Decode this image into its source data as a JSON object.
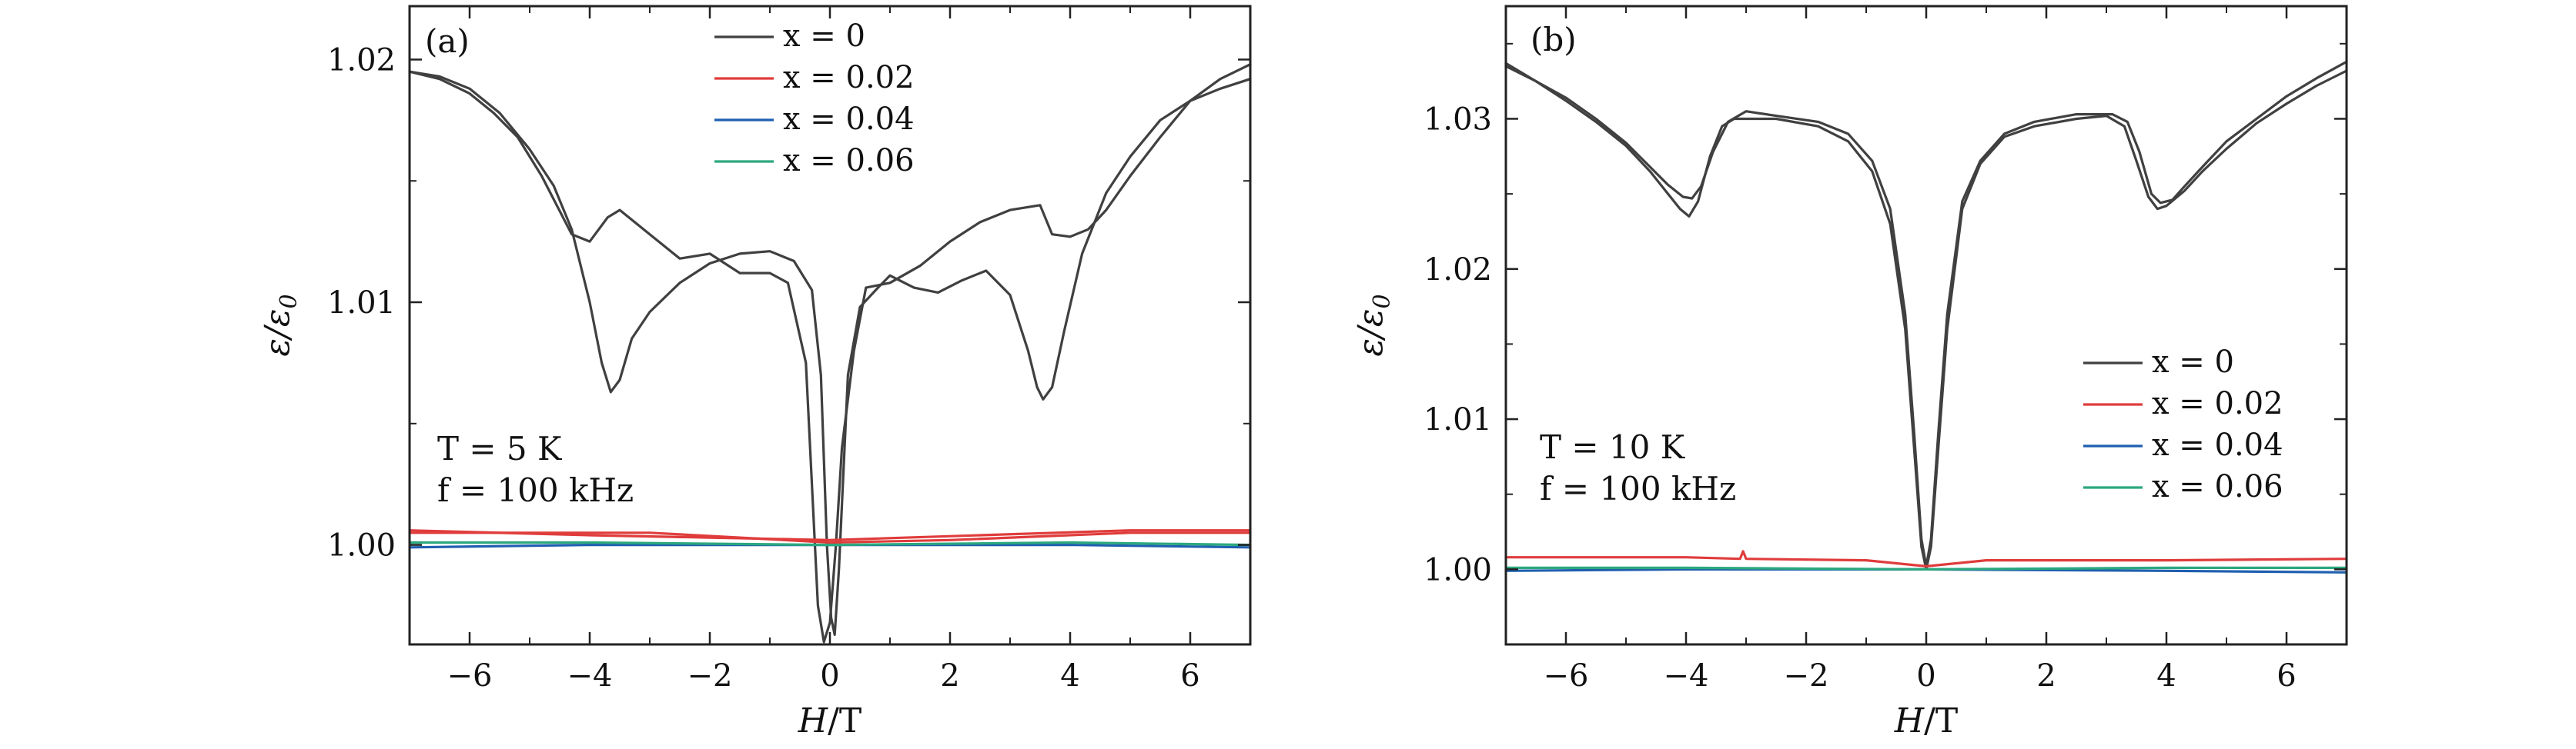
{
  "chart_data": [
    {
      "type": "line",
      "panel_label": "(a)",
      "xlabel": {
        "var": "H",
        "unit": "/T"
      },
      "ylabel": {
        "var": "ε/ε",
        "sub": "0"
      },
      "xlim": [
        -7,
        7
      ],
      "ylim": [
        0.9959,
        1.0222
      ],
      "xticks": [
        -6,
        -4,
        -2,
        0,
        2,
        4,
        6
      ],
      "yticks": [
        1.0,
        1.01,
        1.02
      ],
      "ytick_labels": [
        "1.00",
        "1.01",
        "1.02"
      ],
      "legend_position": "top-center",
      "annotation": [
        "T = 5 K",
        "f = 100 kHz"
      ],
      "series": [
        {
          "name": "x = 0",
          "color": "#404040",
          "branches": [
            [
              [
                -7,
                1.0195
              ],
              [
                -6.5,
                1.0193
              ],
              [
                -6,
                1.0188
              ],
              [
                -5.5,
                1.0178
              ],
              [
                -5,
                1.0163
              ],
              [
                -4.6,
                1.0148
              ],
              [
                -4.3,
                1.013
              ],
              [
                -4.0,
                1.01
              ],
              [
                -3.8,
                1.0075
              ],
              [
                -3.65,
                1.0063
              ],
              [
                -3.5,
                1.0068
              ],
              [
                -3.3,
                1.0085
              ],
              [
                -3.0,
                1.0096
              ],
              [
                -2.5,
                1.0108
              ],
              [
                -2.0,
                1.0116
              ],
              [
                -1.5,
                1.012
              ],
              [
                -1.0,
                1.0121
              ],
              [
                -0.6,
                1.0117
              ],
              [
                -0.3,
                1.0105
              ],
              [
                -0.15,
                1.007
              ],
              [
                -0.05,
                1.0
              ],
              [
                0.02,
                0.997
              ],
              [
                0.08,
                0.9963
              ],
              [
                0.15,
                0.999
              ],
              [
                0.3,
                1.007
              ],
              [
                0.5,
                1.0098
              ],
              [
                0.8,
                1.0106
              ],
              [
                1.0,
                1.0111
              ],
              [
                1.4,
                1.0106
              ],
              [
                1.8,
                1.0104
              ],
              [
                2.2,
                1.0109
              ],
              [
                2.6,
                1.0113
              ],
              [
                3.0,
                1.0103
              ],
              [
                3.3,
                1.008
              ],
              [
                3.45,
                1.0065
              ],
              [
                3.55,
                1.006
              ],
              [
                3.7,
                1.0065
              ],
              [
                3.9,
                1.0088
              ],
              [
                4.2,
                1.012
              ],
              [
                4.6,
                1.0145
              ],
              [
                5.0,
                1.016
              ],
              [
                5.5,
                1.0175
              ],
              [
                6.0,
                1.0183
              ],
              [
                6.5,
                1.0188
              ],
              [
                7.0,
                1.0192
              ]
            ],
            [
              [
                7,
                1.0198
              ],
              [
                6.5,
                1.0192
              ],
              [
                6,
                1.0183
              ],
              [
                5.5,
                1.0168
              ],
              [
                5.0,
                1.0152
              ],
              [
                4.6,
                1.0138
              ],
              [
                4.3,
                1.013
              ],
              [
                4.0,
                1.0127
              ],
              [
                3.7,
                1.0128
              ],
              [
                3.5,
                1.014
              ],
              [
                3.0,
                1.0138
              ],
              [
                2.5,
                1.0133
              ],
              [
                2.0,
                1.0125
              ],
              [
                1.5,
                1.0115
              ],
              [
                1.0,
                1.0108
              ],
              [
                0.6,
                1.0106
              ],
              [
                0.4,
                1.008
              ],
              [
                0.2,
                1.004
              ],
              [
                0.1,
                1.0
              ],
              [
                0.0,
                0.9968
              ],
              [
                -0.1,
                0.996
              ],
              [
                -0.2,
                0.9975
              ],
              [
                -0.4,
                1.0075
              ],
              [
                -0.7,
                1.0108
              ],
              [
                -1.0,
                1.0112
              ],
              [
                -1.5,
                1.0112
              ],
              [
                -2.0,
                1.012
              ],
              [
                -2.5,
                1.0118
              ],
              [
                -3.0,
                1.0128
              ],
              [
                -3.5,
                1.0138
              ],
              [
                -3.7,
                1.0135
              ],
              [
                -4.0,
                1.0125
              ],
              [
                -4.3,
                1.0128
              ],
              [
                -4.8,
                1.0152
              ],
              [
                -5.2,
                1.0168
              ],
              [
                -5.6,
                1.0178
              ],
              [
                -6.0,
                1.0186
              ],
              [
                -6.5,
                1.0192
              ],
              [
                -7,
                1.0195
              ]
            ]
          ]
        },
        {
          "name": "x = 0.02",
          "color": "#e03c3c",
          "branches": [
            [
              [
                -7,
                1.0005
              ],
              [
                -3,
                1.0005
              ],
              [
                -1.5,
                1.0003
              ],
              [
                0,
                1.0001
              ],
              [
                2,
                1.0002
              ],
              [
                5,
                1.0005
              ],
              [
                7,
                1.0005
              ]
            ],
            [
              [
                -7,
                1.0006
              ],
              [
                -4,
                1.0004
              ],
              [
                -2,
                1.0003
              ],
              [
                0,
                1.0002
              ],
              [
                2.5,
                1.0004
              ],
              [
                5,
                1.0006
              ],
              [
                7,
                1.0006
              ]
            ]
          ]
        },
        {
          "name": "x = 0.04",
          "color": "#1f5fb0",
          "branches": [
            [
              [
                -7,
                0.9999
              ],
              [
                -4,
                1.0
              ],
              [
                0,
                1.0
              ],
              [
                4,
                1.0
              ],
              [
                7,
                0.9999
              ]
            ]
          ]
        },
        {
          "name": "x = 0.06",
          "color": "#2ca87e",
          "branches": [
            [
              [
                -7,
                1.0001
              ],
              [
                -4,
                1.0001
              ],
              [
                0,
                1.0
              ],
              [
                4,
                1.0001
              ],
              [
                7,
                1.0
              ]
            ]
          ]
        }
      ]
    },
    {
      "type": "line",
      "panel_label": "(b)",
      "xlabel": {
        "var": "H",
        "unit": "/T"
      },
      "ylabel": {
        "var": "ε/ε",
        "sub": "0"
      },
      "xlim": [
        -7,
        7
      ],
      "ylim": [
        0.995,
        1.0375
      ],
      "xticks": [
        -6,
        -4,
        -2,
        0,
        2,
        4,
        6
      ],
      "yticks": [
        1.0,
        1.01,
        1.02,
        1.03
      ],
      "ytick_labels": [
        "1.00",
        "1.01",
        "1.02",
        "1.03"
      ],
      "legend_position": "bottom-right",
      "annotation": [
        "T = 10 K",
        "f = 100 kHz"
      ],
      "series": [
        {
          "name": "x = 0",
          "color": "#404040",
          "branches": [
            [
              [
                -7,
                1.0335
              ],
              [
                -6.5,
                1.0325
              ],
              [
                -6,
                1.0312
              ],
              [
                -5.5,
                1.0298
              ],
              [
                -5,
                1.0282
              ],
              [
                -4.6,
                1.0265
              ],
              [
                -4.3,
                1.025
              ],
              [
                -4.1,
                1.024
              ],
              [
                -3.95,
                1.0235
              ],
              [
                -3.8,
                1.0245
              ],
              [
                -3.6,
                1.0275
              ],
              [
                -3.4,
                1.0295
              ],
              [
                -3.2,
                1.03
              ],
              [
                -2.5,
                1.03
              ],
              [
                -1.8,
                1.0295
              ],
              [
                -1.3,
                1.0285
              ],
              [
                -0.9,
                1.0265
              ],
              [
                -0.6,
                1.023
              ],
              [
                -0.35,
                1.016
              ],
              [
                -0.2,
                1.008
              ],
              [
                -0.08,
                1.0015
              ],
              [
                0.0,
                1.0
              ],
              [
                0.08,
                1.0015
              ],
              [
                0.2,
                1.008
              ],
              [
                0.35,
                1.016
              ],
              [
                0.6,
                1.024
              ],
              [
                0.9,
                1.027
              ],
              [
                1.3,
                1.0288
              ],
              [
                1.8,
                1.0295
              ],
              [
                2.5,
                1.03
              ],
              [
                3.0,
                1.0302
              ],
              [
                3.3,
                1.0295
              ],
              [
                3.5,
                1.0272
              ],
              [
                3.7,
                1.0248
              ],
              [
                3.85,
                1.024
              ],
              [
                4.0,
                1.0242
              ],
              [
                4.3,
                1.0252
              ],
              [
                4.6,
                1.0265
              ],
              [
                5.0,
                1.028
              ],
              [
                5.5,
                1.0297
              ],
              [
                6.0,
                1.031
              ],
              [
                6.5,
                1.0322
              ],
              [
                7,
                1.0332
              ]
            ],
            [
              [
                7,
                1.0338
              ],
              [
                6.5,
                1.0327
              ],
              [
                6,
                1.0315
              ],
              [
                5.5,
                1.03
              ],
              [
                5,
                1.0285
              ],
              [
                4.6,
                1.0268
              ],
              [
                4.3,
                1.0255
              ],
              [
                4.1,
                1.0246
              ],
              [
                3.9,
                1.0244
              ],
              [
                3.75,
                1.025
              ],
              [
                3.55,
                1.0278
              ],
              [
                3.35,
                1.0298
              ],
              [
                3.1,
                1.0303
              ],
              [
                2.5,
                1.0303
              ],
              [
                1.8,
                1.0298
              ],
              [
                1.3,
                1.029
              ],
              [
                0.9,
                1.0272
              ],
              [
                0.6,
                1.0245
              ],
              [
                0.35,
                1.017
              ],
              [
                0.2,
                1.009
              ],
              [
                0.08,
                1.002
              ],
              [
                0.0,
                1.0002
              ],
              [
                -0.08,
                1.002
              ],
              [
                -0.2,
                1.009
              ],
              [
                -0.35,
                1.017
              ],
              [
                -0.6,
                1.024
              ],
              [
                -0.9,
                1.0272
              ],
              [
                -1.3,
                1.029
              ],
              [
                -1.8,
                1.0298
              ],
              [
                -2.5,
                1.0302
              ],
              [
                -3.0,
                1.0305
              ],
              [
                -3.3,
                1.0298
              ],
              [
                -3.55,
                1.0278
              ],
              [
                -3.75,
                1.0255
              ],
              [
                -3.9,
                1.0247
              ],
              [
                -4.05,
                1.0248
              ],
              [
                -4.3,
                1.0256
              ],
              [
                -4.6,
                1.0268
              ],
              [
                -5.0,
                1.0284
              ],
              [
                -5.5,
                1.03
              ],
              [
                -6.0,
                1.0314
              ],
              [
                -6.5,
                1.0325
              ],
              [
                -7,
                1.0337
              ]
            ]
          ]
        },
        {
          "name": "x = 0.02",
          "color": "#e03c3c",
          "branches": [
            [
              [
                -7,
                1.0008
              ],
              [
                -4,
                1.0008
              ],
              [
                -3.1,
                1.0007
              ],
              [
                -3.05,
                1.0012
              ],
              [
                -3.0,
                1.0007
              ],
              [
                -1,
                1.0006
              ],
              [
                0,
                1.0002
              ],
              [
                1,
                1.0006
              ],
              [
                4,
                1.0006
              ],
              [
                7,
                1.0007
              ]
            ]
          ]
        },
        {
          "name": "x = 0.04",
          "color": "#1f5fb0",
          "branches": [
            [
              [
                -7,
                0.9999
              ],
              [
                -4,
                1.0
              ],
              [
                0,
                1.0
              ],
              [
                4,
                0.9999
              ],
              [
                7,
                0.9998
              ]
            ]
          ]
        },
        {
          "name": "x = 0.06",
          "color": "#2ca87e",
          "branches": [
            [
              [
                -7,
                1.0001
              ],
              [
                -4,
                1.0001
              ],
              [
                0,
                1.0
              ],
              [
                4,
                1.0001
              ],
              [
                7,
                1.0001
              ]
            ]
          ]
        }
      ]
    }
  ]
}
